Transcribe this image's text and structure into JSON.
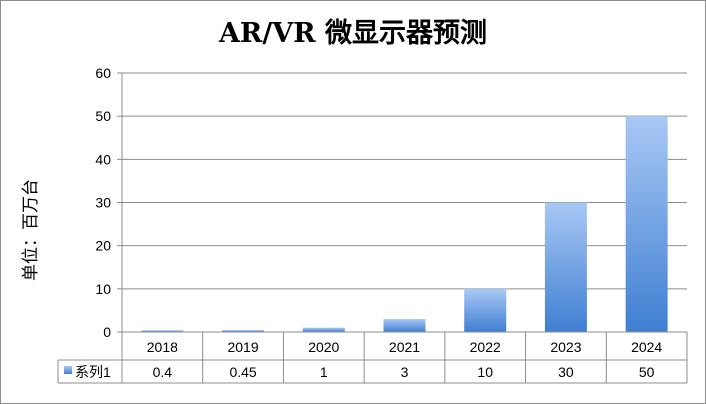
{
  "chart_data": {
    "type": "bar",
    "title": "AR/VR 微显示器预测",
    "ylabel": "单位：百万台",
    "xlabel": "",
    "categories": [
      "2018",
      "2019",
      "2020",
      "2021",
      "2022",
      "2023",
      "2024"
    ],
    "series": [
      {
        "name": "系列1",
        "values": [
          0.4,
          0.45,
          1,
          3,
          10,
          30,
          50
        ]
      }
    ],
    "value_labels": [
      "0.4",
      "0.45",
      "1",
      "3",
      "10",
      "30",
      "50"
    ],
    "ylim": [
      0,
      60
    ],
    "yticks": [
      0,
      10,
      20,
      30,
      40,
      50,
      60
    ],
    "grid": true,
    "legend": "data-table",
    "bar_color_top": "#a9c8f5",
    "bar_color_bottom": "#3f7fd1"
  }
}
